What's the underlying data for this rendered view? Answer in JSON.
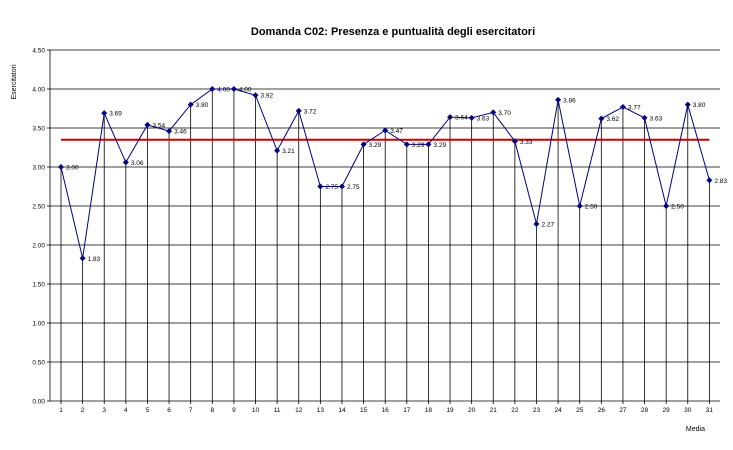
{
  "chart_data": {
    "type": "line",
    "title": "Domanda C02: Presenza e puntualità degli esercitatori",
    "xlabel": "Media",
    "ylabel": "Esercitatori",
    "ylim": [
      0,
      4.5
    ],
    "yticks": [
      "0.00",
      "0.50",
      "1.00",
      "1.50",
      "2.00",
      "2.50",
      "3.00",
      "3.50",
      "4.00",
      "4.50"
    ],
    "categories": [
      "1",
      "2",
      "3",
      "4",
      "5",
      "6",
      "7",
      "8",
      "9",
      "10",
      "11",
      "12",
      "13",
      "14",
      "15",
      "16",
      "17",
      "18",
      "19",
      "20",
      "21",
      "22",
      "23",
      "24",
      "25",
      "26",
      "27",
      "28",
      "29",
      "30",
      "31"
    ],
    "values": [
      3.0,
      1.83,
      3.69,
      3.06,
      3.54,
      3.46,
      3.8,
      4.0,
      4.0,
      3.92,
      3.21,
      3.72,
      2.75,
      2.75,
      3.29,
      3.47,
      3.29,
      3.29,
      3.64,
      3.63,
      3.7,
      3.33,
      2.27,
      3.86,
      2.5,
      3.62,
      3.77,
      3.63,
      2.5,
      3.8,
      2.83
    ],
    "value_labels": [
      "3.00",
      "1.83",
      "3.69",
      "3.06",
      "3.54",
      "3.46",
      "3.80",
      "4.00",
      "4.00",
      "3.92",
      "3.21",
      "3.72",
      "2.75",
      "2.75",
      "3.29",
      "3.47",
      "3.29",
      "3.29",
      "3.64",
      "3.63",
      "3.70",
      "3.33",
      "2.27",
      "3.86",
      "2.50",
      "3.62",
      "3.77",
      "3.63",
      "2.50",
      "3.80",
      "2.83"
    ],
    "mean_line": 3.35,
    "grid": true,
    "colors": {
      "series": "#000080",
      "mean": "#cc0000",
      "grid": "#000000",
      "drop": "#000000"
    }
  }
}
